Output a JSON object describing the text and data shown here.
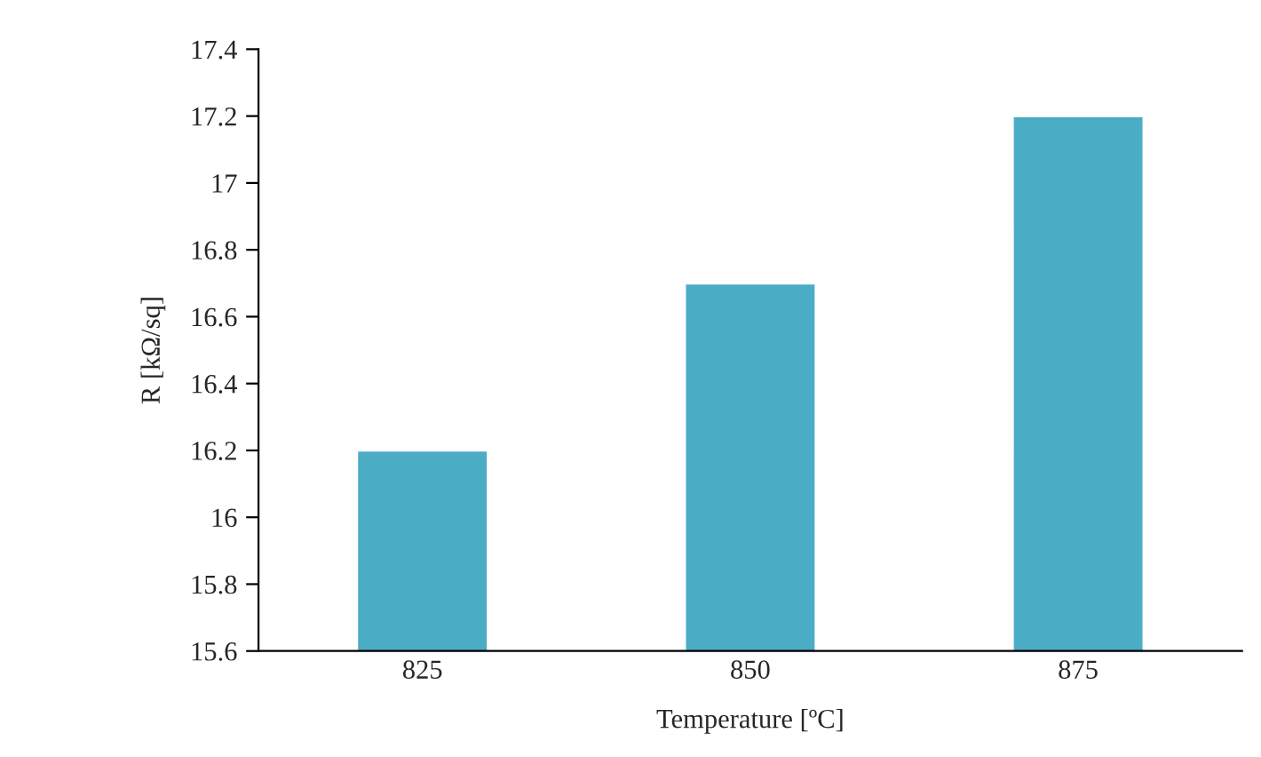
{
  "chart_data": {
    "type": "bar",
    "xlabel": "Temperature [ºC]",
    "ylabel": "R [kΩ/sq]",
    "categories": [
      "825",
      "850",
      "875"
    ],
    "series": [
      {
        "color": "#4bacc6",
        "values": [
          16.2,
          16.7,
          17.2
        ]
      }
    ],
    "ylim": [
      15.6,
      17.4
    ],
    "yticks": [
      15.6,
      15.8,
      16,
      16.2,
      16.4,
      16.6,
      16.8,
      17,
      17.2,
      17.4
    ],
    "grid": false,
    "legend": false
  }
}
